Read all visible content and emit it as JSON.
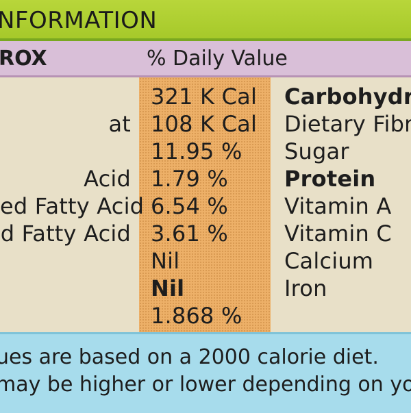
{
  "header": {
    "title": "NFORMATION"
  },
  "labels": {
    "serving": "ROX",
    "daily_value": "% Daily Value"
  },
  "left_column": [
    "",
    "at",
    "",
    "Acid",
    "ed Fatty Acid",
    "d Fatty Acid",
    "",
    "",
    ""
  ],
  "values": [
    "321 K Cal",
    "108 K Cal",
    "11.95 %",
    "1.79 %",
    "6.54 %",
    "3.61 %",
    "Nil",
    "Nil",
    "1.868 %"
  ],
  "right_column": [
    "Carbohydra",
    "Dietary Fibr",
    "Sugar",
    "Protein",
    "Vitamin A",
    "Vitamin C",
    "Calcium",
    "Iron"
  ],
  "footer": {
    "line1": "ues are based on a 2000 calorie diet.",
    "line2": "may be higher or lower depending on yo"
  }
}
